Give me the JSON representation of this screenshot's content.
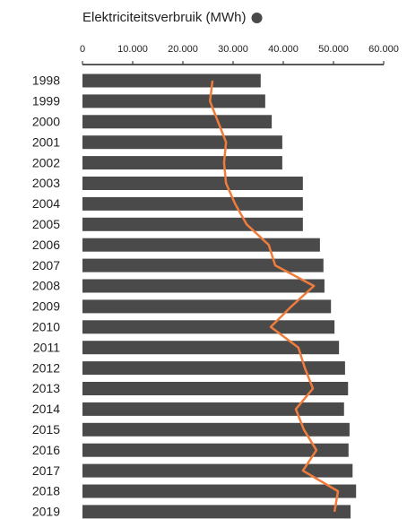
{
  "chart_data": {
    "type": "bar",
    "orientation": "horizontal",
    "categories": [
      "1998",
      "1999",
      "2000",
      "2001",
      "2002",
      "2003",
      "2004",
      "2005",
      "2006",
      "2007",
      "2008",
      "2009",
      "2010",
      "2011",
      "2012",
      "2013",
      "2014",
      "2015",
      "2016",
      "2017",
      "2018",
      "2019"
    ],
    "series": [
      {
        "name": "Elektriciteitsverbruik (MWh)",
        "color": "#4a4a4a",
        "type": "bar",
        "values": [
          35500,
          36400,
          37700,
          39800,
          39800,
          43900,
          43900,
          43900,
          47300,
          48000,
          48200,
          49500,
          50200,
          51100,
          52300,
          52900,
          52100,
          53200,
          53000,
          53800,
          54500,
          53400
        ]
      },
      {
        "color": "#f07c3c",
        "type": "line",
        "values": [
          25900,
          25400,
          27000,
          28600,
          28200,
          28600,
          30400,
          32700,
          37100,
          38400,
          46100,
          41600,
          37500,
          43000,
          44300,
          45900,
          42500,
          44100,
          46600,
          43900,
          50900,
          50200
        ]
      }
    ],
    "xlim": [
      0,
      60000
    ],
    "xticks": [
      0,
      {
        "value": 10000,
        "label": "10.000"
      },
      {
        "value": 20000,
        "label": "20.000"
      },
      {
        "value": 30000,
        "label": "30.000"
      },
      {
        "value": 40000,
        "label": "40.000"
      },
      {
        "value": 50000,
        "label": "50.000"
      },
      {
        "value": 60000,
        "label": "60.000"
      }
    ],
    "legend": "top"
  }
}
